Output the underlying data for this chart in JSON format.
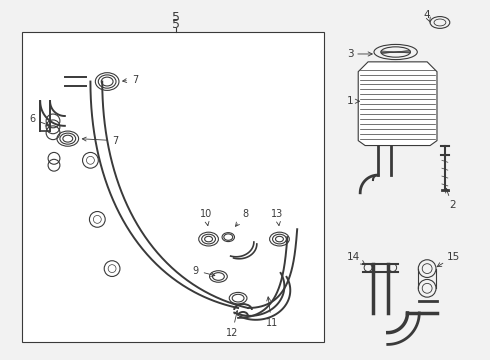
{
  "background_color": "#f2f2f2",
  "line_color": "#3a3a3a",
  "fig_width": 4.9,
  "fig_height": 3.6,
  "dpi": 100
}
